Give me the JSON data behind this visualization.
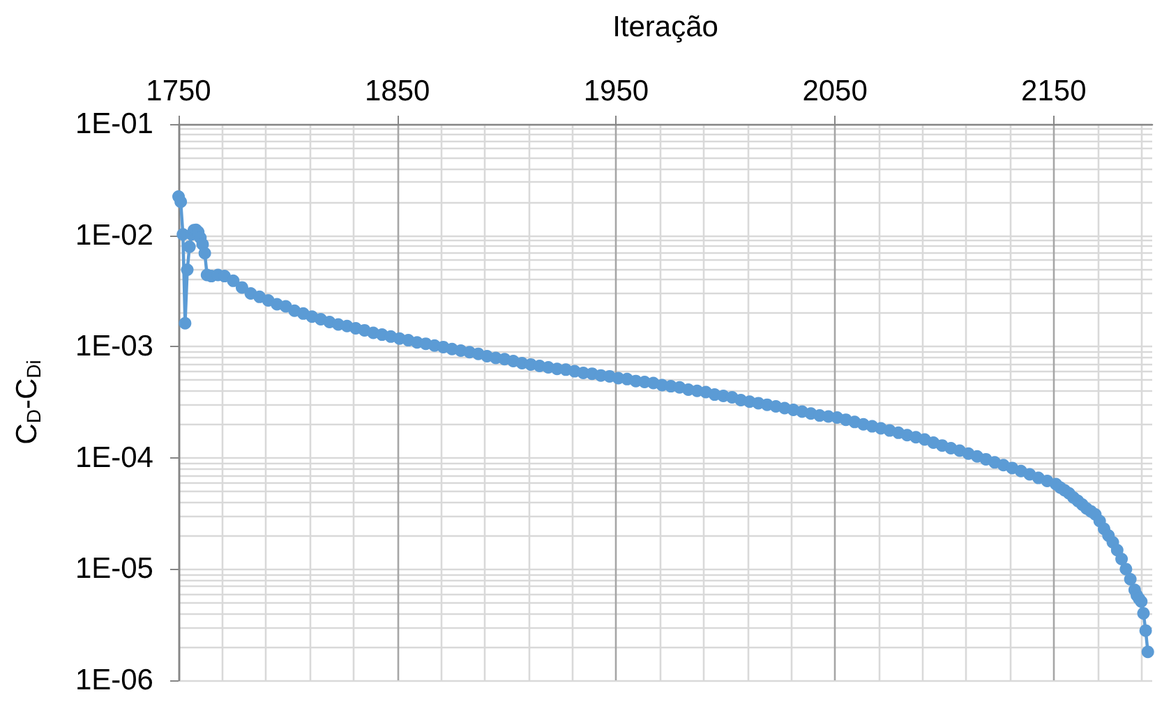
{
  "chart_data": {
    "type": "line",
    "xlabel": "Iteração",
    "ylabel": "C$_{D}$-C$_{Di}$",
    "x": [
      1750,
      1751,
      1752,
      1753,
      1754,
      1755,
      1756,
      1757,
      1758,
      1759,
      1760,
      1761,
      1762,
      1763,
      1765,
      1768,
      1771,
      1775,
      1779,
      1783,
      1787,
      1791,
      1795,
      1799,
      1803,
      1807,
      1811,
      1815,
      1819,
      1823,
      1827,
      1831,
      1835,
      1839,
      1843,
      1847,
      1851,
      1855,
      1859,
      1863,
      1867,
      1871,
      1875,
      1879,
      1883,
      1887,
      1891,
      1895,
      1899,
      1903,
      1907,
      1911,
      1915,
      1919,
      1923,
      1927,
      1931,
      1935,
      1939,
      1943,
      1947,
      1951,
      1955,
      1959,
      1963,
      1967,
      1971,
      1975,
      1979,
      1983,
      1987,
      1991,
      1995,
      1999,
      2003,
      2007,
      2011,
      2015,
      2019,
      2023,
      2027,
      2031,
      2035,
      2039,
      2043,
      2047,
      2051,
      2055,
      2059,
      2063,
      2067,
      2071,
      2075,
      2079,
      2083,
      2087,
      2091,
      2095,
      2099,
      2103,
      2107,
      2111,
      2115,
      2119,
      2123,
      2127,
      2131,
      2135,
      2139,
      2143,
      2147,
      2151,
      2153,
      2155,
      2157,
      2159,
      2161,
      2163,
      2165,
      2167,
      2169,
      2171,
      2173,
      2175,
      2177,
      2179,
      2181,
      2183,
      2185,
      2187,
      2188,
      2189,
      2190,
      2191,
      2192,
      2193
    ],
    "series": [
      {
        "color": "#5b9bd5",
        "values": [
          0.0223,
          0.02,
          0.0102,
          0.00162,
          0.0049,
          0.0079,
          0.0102,
          0.0111,
          0.0112,
          0.0107,
          0.0095,
          0.0083,
          0.0069,
          0.0044,
          0.0043,
          0.0044,
          0.0043,
          0.0039,
          0.0034,
          0.003,
          0.0028,
          0.0026,
          0.0024,
          0.0023,
          0.0021,
          0.00198,
          0.00186,
          0.00176,
          0.00166,
          0.00158,
          0.00153,
          0.00146,
          0.0014,
          0.00133,
          0.00128,
          0.00123,
          0.00118,
          0.00114,
          0.00109,
          0.00106,
          0.00102,
          0.00099,
          0.00095,
          0.00092,
          0.00089,
          0.00086,
          0.00082,
          0.00079,
          0.00077,
          0.00074,
          0.00071,
          0.00069,
          0.00067,
          0.00065,
          0.00063,
          0.00062,
          0.0006,
          0.00058,
          0.00057,
          0.00055,
          0.00054,
          0.00052,
          0.00051,
          0.00049,
          0.00048,
          0.00047,
          0.00045,
          0.00044,
          0.00043,
          0.00041,
          0.0004,
          0.00039,
          0.00037,
          0.00036,
          0.00035,
          0.00033,
          0.00032,
          0.00031,
          0.0003,
          0.00029,
          0.00028,
          0.00027,
          0.00026,
          0.00025,
          0.00024,
          0.000235,
          0.00023,
          0.00022,
          0.00021,
          0.0002,
          0.000192,
          0.000184,
          0.000176,
          0.000168,
          0.00016,
          0.000153,
          0.000146,
          0.000137,
          0.000129,
          0.000122,
          0.000116,
          0.000109,
          0.000103,
          9.7e-05,
          9.1e-05,
          8.6e-05,
          8.1e-05,
          7.6e-05,
          7.1e-05,
          6.6e-05,
          6.2e-05,
          5.8e-05,
          5.4e-05,
          5.1e-05,
          4.8e-05,
          4.4e-05,
          4.1e-05,
          3.8e-05,
          3.5e-05,
          3.3e-05,
          3.1e-05,
          2.7e-05,
          2.3e-05,
          2e-05,
          1.74e-05,
          1.48e-05,
          1.23e-05,
          1e-05,
          8.1e-06,
          6.5e-06,
          5.8e-06,
          5.4e-06,
          5.1e-06,
          4e-06,
          2.8e-06,
          1.8e-06
        ]
      }
    ],
    "xlim": [
      1750,
      2195
    ],
    "xticks": [
      1750,
      1850,
      1950,
      2050,
      2150
    ],
    "ylim": [
      1e-06,
      0.1
    ],
    "yticks": [
      {
        "value": 1e-06,
        "label": "1E-06"
      },
      {
        "value": 1e-05,
        "label": "1E-05"
      },
      {
        "value": 0.0001,
        "label": "1E-04"
      },
      {
        "value": 0.001,
        "label": "1E-03"
      },
      {
        "value": 0.01,
        "label": "1E-02"
      },
      {
        "value": 0.1,
        "label": "1E-01"
      }
    ],
    "log": "y",
    "grid": true,
    "marker": "circle"
  }
}
